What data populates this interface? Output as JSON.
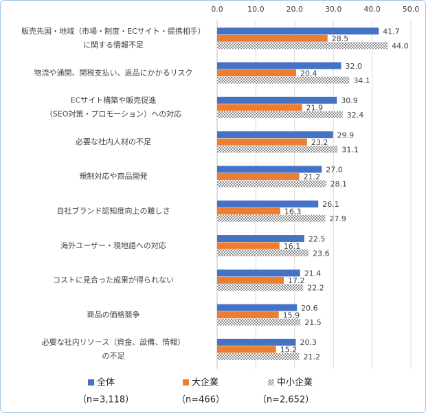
{
  "chart_data": {
    "type": "bar",
    "orientation": "horizontal",
    "categories": [
      [
        "販売先国・地域（市場・制度・ECサイト・提携相手）",
        "に関する情報不足"
      ],
      [
        "物流や通関、関税支払い、返品にかかるリスク"
      ],
      [
        "ECサイト構築や販売促進",
        "（SEO対策・プロモーション）への対応"
      ],
      [
        "必要な社内人材の不足"
      ],
      [
        "規制対応や商品開発"
      ],
      [
        "自社ブランド認知度向上の難しさ"
      ],
      [
        "海外ユーザー・現地語への対応"
      ],
      [
        "コストに見合った成果が得られない"
      ],
      [
        "商品の価格競争"
      ],
      [
        "必要な社内リソース（資金、設備、情報）",
        "の不足"
      ]
    ],
    "series": [
      {
        "name": "全体",
        "sample": "（n=3,118）",
        "color": "#4472c4",
        "values": [
          41.7,
          32.0,
          30.9,
          29.9,
          27.0,
          26.1,
          22.5,
          21.4,
          20.6,
          20.3
        ],
        "value_labels": [
          "41.7",
          "32.0",
          "30.9",
          "29.9",
          "27.0",
          "26.1",
          "22.5",
          "21.4",
          "20.6",
          "20.3"
        ]
      },
      {
        "name": "大企業",
        "sample": "（n=466）",
        "color": "#ed7d31",
        "values": [
          28.5,
          20.4,
          21.9,
          23.2,
          21.2,
          16.3,
          16.1,
          17.2,
          15.9,
          15.2
        ],
        "value_labels": [
          "28.5",
          "20.4",
          "21.9",
          "23.2",
          "21.2",
          "16.3",
          "16.1",
          "17.2",
          "15.9",
          "15.2"
        ]
      },
      {
        "name": "中小企業",
        "sample": "（n=2,652）",
        "color": "#a5a5a5",
        "pattern": "checker",
        "values": [
          44.0,
          34.1,
          32.4,
          31.1,
          28.1,
          27.9,
          23.6,
          22.2,
          21.5,
          21.2
        ],
        "value_labels": [
          "44.0",
          "34.1",
          "32.4",
          "31.1",
          "28.1",
          "27.9",
          "23.6",
          "22.2",
          "21.5",
          "21.2"
        ]
      }
    ],
    "xlim": [
      0,
      50
    ],
    "xticks": [
      {
        "value": 0,
        "label": "0.0"
      },
      {
        "value": 10,
        "label": "10.0"
      },
      {
        "value": 20,
        "label": "20.0"
      },
      {
        "value": 30,
        "label": "30.0"
      },
      {
        "value": 40,
        "label": "40.0"
      },
      {
        "value": 50,
        "label": "50.0"
      }
    ],
    "grid": true,
    "legend": "bottom"
  }
}
